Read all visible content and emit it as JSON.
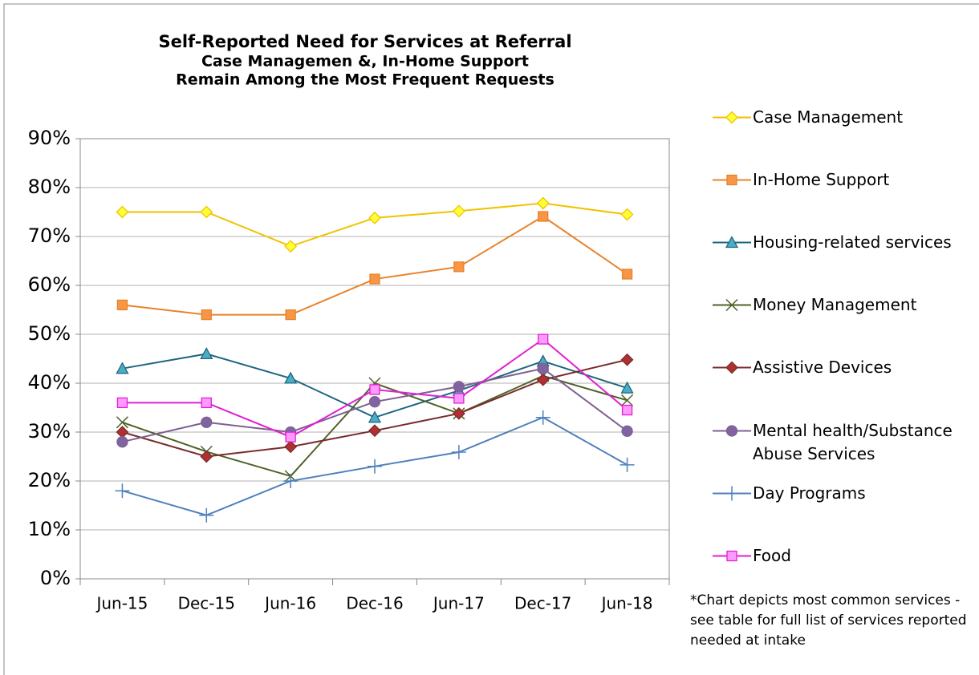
{
  "chart_data": {
    "type": "line",
    "title": "Self-Reported Need for Services at Referral",
    "subtitle": [
      "Case Managemen &, In-Home Support",
      "Remain Among the Most Frequent Requests"
    ],
    "note": "*Chart depicts most common services - see table for full list of services reported needed at intake",
    "categories": [
      "Jun-15",
      "Dec-15",
      "Jun-16",
      "Dec-16",
      "Jun-17",
      "Dec-17",
      "Jun-18"
    ],
    "ylim": [
      0,
      90
    ],
    "yticks": [
      {
        "value": 0,
        "label": "0%"
      },
      {
        "value": 10,
        "label": "10%"
      },
      {
        "value": 20,
        "label": "20%"
      },
      {
        "value": 30,
        "label": "30%"
      },
      {
        "value": 40,
        "label": "40%"
      },
      {
        "value": 50,
        "label": "50%"
      },
      {
        "value": 60,
        "label": "60%"
      },
      {
        "value": 70,
        "label": "70%"
      },
      {
        "value": 80,
        "label": "80%"
      },
      {
        "value": 90,
        "label": "90%"
      }
    ],
    "grid": true,
    "legend": "right",
    "series": [
      {
        "name": "Case Management",
        "color": "#f2c200",
        "marker": "diamond",
        "marker_fill": "#ffff33",
        "values": [
          75,
          75,
          68,
          73.8,
          75.2,
          76.8,
          74.5
        ]
      },
      {
        "name": "In-Home Support",
        "color": "#e8832a",
        "marker": "square",
        "marker_fill": "#f79646",
        "values": [
          56,
          54,
          54,
          61.3,
          63.8,
          74.1,
          62.3
        ]
      },
      {
        "name": "Housing-related services",
        "color": "#1f6680",
        "marker": "triangle",
        "marker_fill": "#4bacc6",
        "values": [
          43,
          46,
          41,
          33,
          38.5,
          44.5,
          39
        ]
      },
      {
        "name": "Money Management",
        "color": "#4f6228",
        "marker": "x",
        "marker_fill": "#4f6228",
        "values": [
          32,
          26,
          21,
          40,
          33.8,
          41.5,
          36.5
        ]
      },
      {
        "name": "Assistive Devices",
        "color": "#7b2c2c",
        "marker": "diamond",
        "marker_fill": "#b03030",
        "values": [
          30,
          25,
          27,
          30.3,
          33.8,
          40.7,
          44.8
        ]
      },
      {
        "name": "Mental health/Substance Abuse Services",
        "color": "#7f6090",
        "marker": "circle",
        "marker_fill": "#8064a2",
        "values": [
          28,
          32,
          30,
          36.2,
          39.3,
          43,
          30.2
        ]
      },
      {
        "name": "Day Programs",
        "color": "#4f81bd",
        "marker": "plus",
        "marker_fill": "#4f81bd",
        "values": [
          18,
          13,
          20,
          23,
          25.9,
          33,
          23.3
        ]
      },
      {
        "name": "Food",
        "color": "#e020d0",
        "marker": "square",
        "marker_fill": "#ff99ff",
        "values": [
          36,
          36,
          29,
          38.7,
          36.9,
          49,
          34.5
        ]
      }
    ]
  }
}
